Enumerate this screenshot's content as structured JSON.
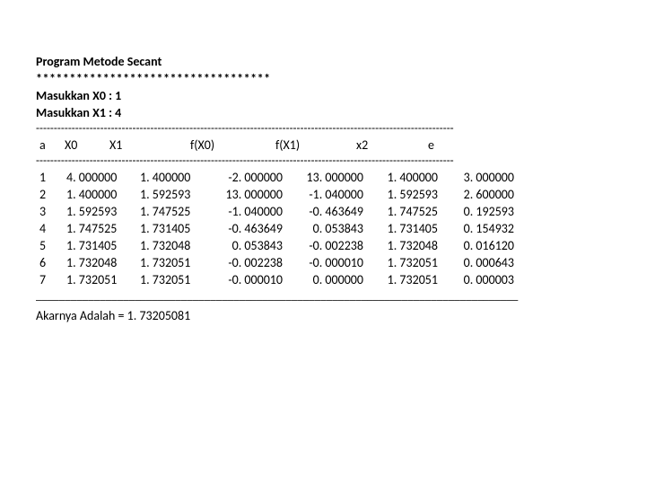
{
  "title": "Program Metode Secant",
  "stars": "***********************************",
  "input1_label": "Masukkan X0  : ",
  "input1_val": "1",
  "input2_label": "Masukkan X1  : ",
  "input2_val": "4",
  "dashes": "---------------------------------------------------------------------------------------------------------------------",
  "headers": {
    "a": "a",
    "x0": "X0",
    "x1": "X1",
    "fx0": "f(X0)",
    "fx1": "f(X1)",
    "x2": "x2",
    "e": "e"
  },
  "rows": [
    {
      "idx": "1",
      "x0": "4. 000000",
      "x1": "1. 400000",
      "fx0": "-2. 000000",
      "fx1": "13. 000000",
      "x2": "1. 400000",
      "e": "3. 000000"
    },
    {
      "idx": "2",
      "x0": "1. 400000",
      "x1": "1. 592593",
      "fx0": "13. 000000",
      "fx1": "-1. 040000",
      "x2": "1. 592593",
      "e": "2. 600000"
    },
    {
      "idx": "3",
      "x0": "1. 592593",
      "x1": "1. 747525",
      "fx0": "-1. 040000",
      "fx1": "-0. 463649",
      "x2": "1. 747525",
      "e": "0. 192593"
    },
    {
      "idx": "4",
      "x0": "1. 747525",
      "x1": "1. 731405",
      "fx0": "-0. 463649",
      "fx1": "0. 053843",
      "x2": "1. 731405",
      "e": "0. 154932"
    },
    {
      "idx": "5",
      "x0": "1. 731405",
      "x1": "1. 732048",
      "fx0": "0. 053843",
      "fx1": "-0. 002238",
      "x2": "1. 732048",
      "e": "0. 016120"
    },
    {
      "idx": "6",
      "x0": "1. 732048",
      "x1": "1. 732051",
      "fx0": "-0. 002238",
      "fx1": "-0. 000010",
      "x2": "1. 732051",
      "e": "0. 000643"
    },
    {
      "idx": "7",
      "x0": "1. 732051",
      "x1": "1. 732051",
      "fx0": "-0. 000010",
      "fx1": "0. 000000",
      "x2": "1. 732051",
      "e": "0. 000003"
    }
  ],
  "result_label": "Akarnya Adalah = ",
  "result_value": "1. 73205081",
  "underscore_line": "___________________________________________________________________________________"
}
